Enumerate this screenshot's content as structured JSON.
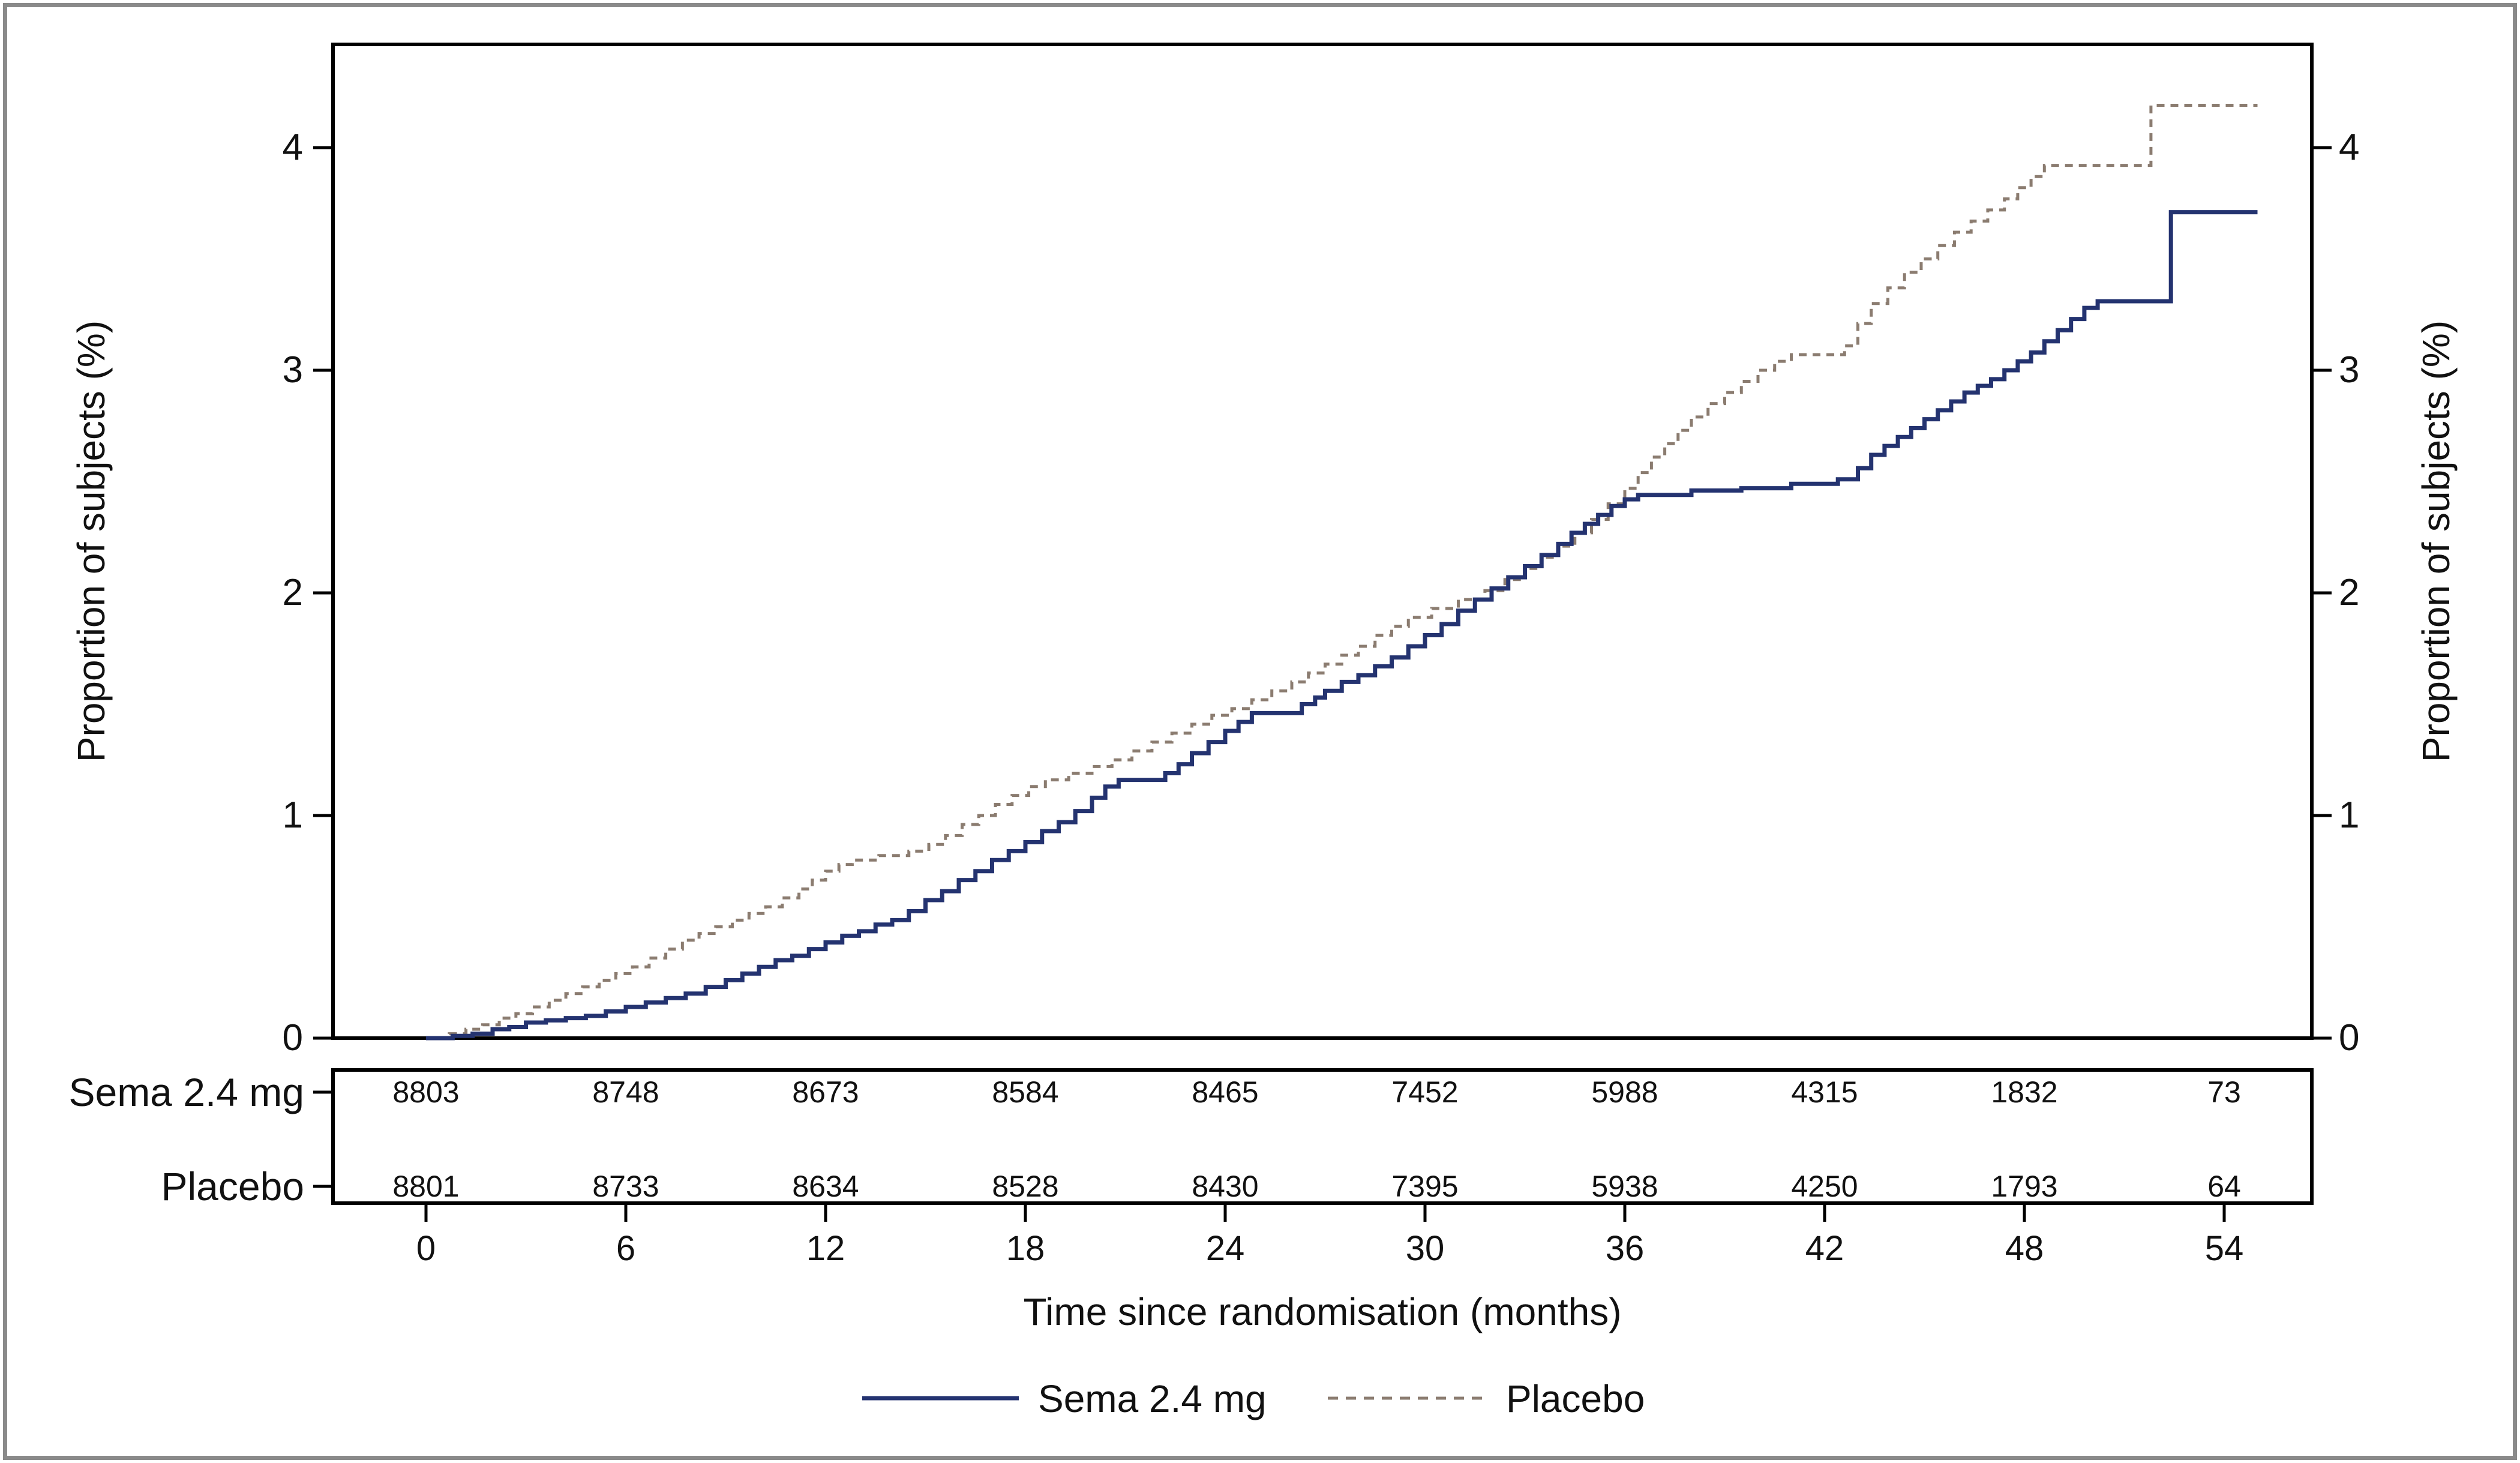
{
  "figure": {
    "y_axis_left_title": "Proportion of subjects (%)",
    "y_axis_right_title": "Proportion of subjects (%)",
    "x_axis_title": "Time since randomisation (months)"
  },
  "risk_table": {
    "rows": [
      {
        "label": "Sema 2.4 mg",
        "counts": [
          "8803",
          "8748",
          "8673",
          "8584",
          "8465",
          "7452",
          "5988",
          "4315",
          "1832",
          "73"
        ]
      },
      {
        "label": "Placebo",
        "counts": [
          "8801",
          "8733",
          "8634",
          "8528",
          "8430",
          "7395",
          "5938",
          "4250",
          "1793",
          "64"
        ]
      }
    ]
  },
  "legend": {
    "items": [
      {
        "label": "Sema 2.4 mg",
        "style": "solid",
        "color": "#243370"
      },
      {
        "label": "Placebo",
        "style": "dashed",
        "color": "#8b7c70"
      }
    ]
  },
  "colors": {
    "sema_line": "#243370",
    "placebo_line": "#8b7c70",
    "frame": "#000000",
    "figure_border": "#8a8a8a",
    "text": "#111111"
  },
  "chart_data": {
    "type": "line",
    "subtype": "cumulative-incidence-step",
    "title": "",
    "xlabel": "Time since randomisation (months)",
    "ylabel": "Proportion of subjects (%)",
    "x_ticks": [
      0,
      6,
      12,
      18,
      24,
      30,
      36,
      42,
      48,
      54
    ],
    "y_ticks": [
      0,
      1,
      2,
      3,
      4
    ],
    "xlim": [
      -2.8,
      56.6
    ],
    "ylim": [
      0,
      4.46
    ],
    "grid": false,
    "legend_position": "bottom",
    "end_month": 55.0,
    "series": [
      {
        "name": "Placebo",
        "color": "#8b7c70",
        "line_style": "dashed",
        "line_width": 5,
        "points": [
          [
            0,
            0
          ],
          [
            0.7,
            0.02
          ],
          [
            1.2,
            0.04
          ],
          [
            1.7,
            0.06
          ],
          [
            2.2,
            0.09
          ],
          [
            2.7,
            0.11
          ],
          [
            3.2,
            0.14
          ],
          [
            3.7,
            0.17
          ],
          [
            4.2,
            0.2
          ],
          [
            4.7,
            0.23
          ],
          [
            5.2,
            0.26
          ],
          [
            5.7,
            0.29
          ],
          [
            6.2,
            0.32
          ],
          [
            6.7,
            0.36
          ],
          [
            7.2,
            0.4
          ],
          [
            7.7,
            0.44
          ],
          [
            8.2,
            0.47
          ],
          [
            8.7,
            0.5
          ],
          [
            9.2,
            0.53
          ],
          [
            9.7,
            0.56
          ],
          [
            10.2,
            0.59
          ],
          [
            10.7,
            0.63
          ],
          [
            11.2,
            0.67
          ],
          [
            11.6,
            0.71
          ],
          [
            12,
            0.75
          ],
          [
            12.4,
            0.78
          ],
          [
            12.8,
            0.8
          ],
          [
            13.6,
            0.82
          ],
          [
            14.5,
            0.84
          ],
          [
            15.1,
            0.87
          ],
          [
            15.6,
            0.91
          ],
          [
            16.1,
            0.96
          ],
          [
            16.6,
            1.0
          ],
          [
            17.1,
            1.05
          ],
          [
            17.6,
            1.09
          ],
          [
            18.1,
            1.13
          ],
          [
            18.6,
            1.16
          ],
          [
            19.3,
            1.19
          ],
          [
            20,
            1.22
          ],
          [
            20.6,
            1.25
          ],
          [
            21.2,
            1.29
          ],
          [
            21.8,
            1.33
          ],
          [
            22.4,
            1.37
          ],
          [
            23,
            1.41
          ],
          [
            23.6,
            1.45
          ],
          [
            24.2,
            1.48
          ],
          [
            24.8,
            1.52
          ],
          [
            25.4,
            1.56
          ],
          [
            26,
            1.6
          ],
          [
            26.5,
            1.64
          ],
          [
            27,
            1.68
          ],
          [
            27.5,
            1.72
          ],
          [
            28,
            1.76
          ],
          [
            28.5,
            1.81
          ],
          [
            29,
            1.85
          ],
          [
            29.5,
            1.89
          ],
          [
            30.2,
            1.93
          ],
          [
            31,
            1.97
          ],
          [
            31.8,
            2.01
          ],
          [
            32.4,
            2.06
          ],
          [
            33,
            2.11
          ],
          [
            33.5,
            2.16
          ],
          [
            34,
            2.21
          ],
          [
            34.5,
            2.27
          ],
          [
            35,
            2.33
          ],
          [
            35.5,
            2.4
          ],
          [
            36,
            2.47
          ],
          [
            36.4,
            2.54
          ],
          [
            36.8,
            2.61
          ],
          [
            37.2,
            2.67
          ],
          [
            37.6,
            2.73
          ],
          [
            38,
            2.79
          ],
          [
            38.5,
            2.85
          ],
          [
            39,
            2.9
          ],
          [
            39.5,
            2.95
          ],
          [
            40,
            3.0
          ],
          [
            40.5,
            3.04
          ],
          [
            41,
            3.07
          ],
          [
            42.6,
            3.11
          ],
          [
            43,
            3.21
          ],
          [
            43.4,
            3.3
          ],
          [
            43.9,
            3.37
          ],
          [
            44.4,
            3.44
          ],
          [
            44.9,
            3.5
          ],
          [
            45.4,
            3.56
          ],
          [
            45.9,
            3.62
          ],
          [
            46.4,
            3.67
          ],
          [
            46.9,
            3.72
          ],
          [
            47.4,
            3.77
          ],
          [
            47.8,
            3.82
          ],
          [
            48.2,
            3.87
          ],
          [
            48.6,
            3.92
          ],
          [
            51.8,
            4.19
          ]
        ]
      },
      {
        "name": "Sema 2.4 mg",
        "color": "#243370",
        "line_style": "solid",
        "line_width": 7,
        "points": [
          [
            0,
            0
          ],
          [
            0.8,
            0.01
          ],
          [
            1.4,
            0.02
          ],
          [
            2,
            0.04
          ],
          [
            2.5,
            0.05
          ],
          [
            3,
            0.07
          ],
          [
            3.6,
            0.08
          ],
          [
            4.2,
            0.09
          ],
          [
            4.8,
            0.1
          ],
          [
            5.4,
            0.12
          ],
          [
            6,
            0.14
          ],
          [
            6.6,
            0.16
          ],
          [
            7.2,
            0.18
          ],
          [
            7.8,
            0.2
          ],
          [
            8.4,
            0.23
          ],
          [
            9,
            0.26
          ],
          [
            9.5,
            0.29
          ],
          [
            10,
            0.32
          ],
          [
            10.5,
            0.35
          ],
          [
            11,
            0.37
          ],
          [
            11.5,
            0.4
          ],
          [
            12,
            0.43
          ],
          [
            12.5,
            0.46
          ],
          [
            13,
            0.48
          ],
          [
            13.5,
            0.51
          ],
          [
            14,
            0.53
          ],
          [
            14.5,
            0.57
          ],
          [
            15,
            0.62
          ],
          [
            15.5,
            0.66
          ],
          [
            16,
            0.71
          ],
          [
            16.5,
            0.75
          ],
          [
            17,
            0.8
          ],
          [
            17.5,
            0.84
          ],
          [
            18,
            0.88
          ],
          [
            18.5,
            0.93
          ],
          [
            19,
            0.97
          ],
          [
            19.5,
            1.02
          ],
          [
            20,
            1.08
          ],
          [
            20.4,
            1.13
          ],
          [
            20.8,
            1.16
          ],
          [
            22.2,
            1.19
          ],
          [
            22.6,
            1.23
          ],
          [
            23,
            1.28
          ],
          [
            23.5,
            1.33
          ],
          [
            24,
            1.38
          ],
          [
            24.4,
            1.42
          ],
          [
            24.8,
            1.46
          ],
          [
            26.3,
            1.5
          ],
          [
            26.7,
            1.53
          ],
          [
            27,
            1.56
          ],
          [
            27.5,
            1.6
          ],
          [
            28,
            1.63
          ],
          [
            28.5,
            1.67
          ],
          [
            29,
            1.71
          ],
          [
            29.5,
            1.76
          ],
          [
            30,
            1.81
          ],
          [
            30.5,
            1.86
          ],
          [
            31,
            1.92
          ],
          [
            31.5,
            1.97
          ],
          [
            32,
            2.02
          ],
          [
            32.5,
            2.07
          ],
          [
            33,
            2.12
          ],
          [
            33.5,
            2.17
          ],
          [
            34,
            2.22
          ],
          [
            34.4,
            2.27
          ],
          [
            34.8,
            2.31
          ],
          [
            35.2,
            2.35
          ],
          [
            35.6,
            2.39
          ],
          [
            36,
            2.42
          ],
          [
            36.4,
            2.44
          ],
          [
            38,
            2.46
          ],
          [
            39.5,
            2.47
          ],
          [
            41,
            2.49
          ],
          [
            42.4,
            2.51
          ],
          [
            43,
            2.56
          ],
          [
            43.4,
            2.62
          ],
          [
            43.8,
            2.66
          ],
          [
            44.2,
            2.7
          ],
          [
            44.6,
            2.74
          ],
          [
            45,
            2.78
          ],
          [
            45.4,
            2.82
          ],
          [
            45.8,
            2.86
          ],
          [
            46.2,
            2.9
          ],
          [
            46.6,
            2.93
          ],
          [
            47,
            2.96
          ],
          [
            47.4,
            3.0
          ],
          [
            47.8,
            3.04
          ],
          [
            48.2,
            3.08
          ],
          [
            48.6,
            3.13
          ],
          [
            49,
            3.18
          ],
          [
            49.4,
            3.23
          ],
          [
            49.8,
            3.28
          ],
          [
            50.2,
            3.31
          ],
          [
            52.4,
            3.71
          ]
        ]
      }
    ],
    "risk_table_times": [
      0,
      6,
      12,
      18,
      24,
      30,
      36,
      42,
      48,
      54
    ]
  }
}
